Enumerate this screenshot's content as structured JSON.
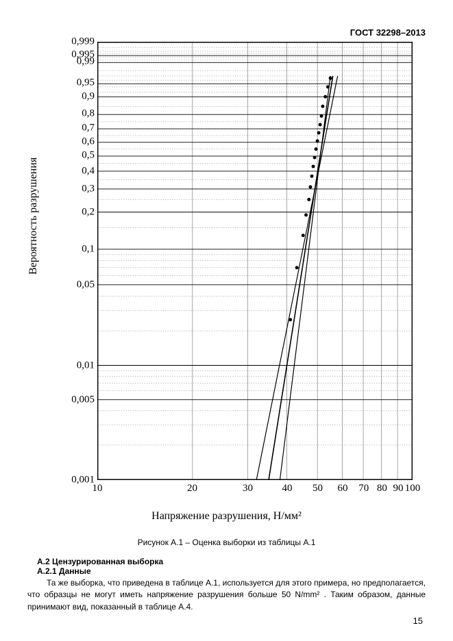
{
  "header": "ГОСТ 32298–2013",
  "page_number": "15",
  "chart": {
    "type": "line",
    "title": "",
    "ylabel": "Вероятность разрушения",
    "xlabel": "Напряжение разрушения, Н/мм²",
    "caption": "Рисунок А.1 – Оценка выборки из таблицы А.1",
    "background_color": "#ffffff",
    "grid_color": "#000000",
    "line_colors": [
      "#000000",
      "#000000",
      "#000000"
    ],
    "marker_color": "#000000",
    "x_scale": "log",
    "y_scale": "weibull-probability",
    "xlim": [
      10,
      100
    ],
    "ylim_prob": [
      0.001,
      0.999
    ],
    "x_ticks_major": [
      10,
      20,
      30,
      40,
      50,
      60,
      70,
      80,
      90,
      100
    ],
    "x_tick_labels": [
      "10",
      "20",
      "30",
      "40",
      "50",
      "60",
      "70",
      "80",
      "90",
      "100"
    ],
    "y_tick_probs": [
      0.001,
      0.005,
      0.01,
      0.05,
      0.1,
      0.2,
      0.3,
      0.4,
      0.5,
      0.6,
      0.7,
      0.8,
      0.9,
      0.95,
      0.99,
      0.995,
      0.999
    ],
    "y_tick_labels": [
      "0,001",
      "0,005",
      "0,01",
      "0,05",
      "0,1",
      "0,2",
      "0,3",
      "0,4",
      "0,5",
      "0,6",
      "0,7",
      "0,8",
      "0,9",
      "0,95",
      "0,99",
      "0,995",
      "0,999"
    ],
    "lines": [
      {
        "name": "fit-low",
        "x": [
          32,
          58
        ],
        "p": [
          0.001,
          0.97
        ],
        "width": 1.2
      },
      {
        "name": "fit-center",
        "x": [
          35,
          56
        ],
        "p": [
          0.001,
          0.97
        ],
        "width": 1.6
      },
      {
        "name": "fit-high",
        "x": [
          38,
          55
        ],
        "p": [
          0.001,
          0.97
        ],
        "width": 1.2
      }
    ],
    "data_points": [
      {
        "x": 41,
        "p": 0.025
      },
      {
        "x": 43,
        "p": 0.07
      },
      {
        "x": 45,
        "p": 0.13
      },
      {
        "x": 46,
        "p": 0.19
      },
      {
        "x": 47,
        "p": 0.25
      },
      {
        "x": 47.5,
        "p": 0.31
      },
      {
        "x": 48,
        "p": 0.37
      },
      {
        "x": 48.5,
        "p": 0.43
      },
      {
        "x": 49,
        "p": 0.49
      },
      {
        "x": 49.5,
        "p": 0.55
      },
      {
        "x": 50,
        "p": 0.61
      },
      {
        "x": 50.5,
        "p": 0.67
      },
      {
        "x": 51,
        "p": 0.73
      },
      {
        "x": 51.5,
        "p": 0.79
      },
      {
        "x": 52,
        "p": 0.85
      },
      {
        "x": 53,
        "p": 0.9
      },
      {
        "x": 54,
        "p": 0.94
      },
      {
        "x": 55,
        "p": 0.965
      }
    ],
    "marker_radius": 2.5,
    "axis_fontsize": 15,
    "label_fontsize": 16
  },
  "section_a2_title": "А.2 Цензурированная выборка",
  "section_a21_title": "А.2.1 Данные",
  "body_paragraph": "Та же выборка, что приведена в таблице А.1, используется для этого примера, но предполагается, что образцы не могут иметь напряжение разрушения больше 50 N/mm² . Таким образом, данные принимают вид, показанный в таблице А.4."
}
